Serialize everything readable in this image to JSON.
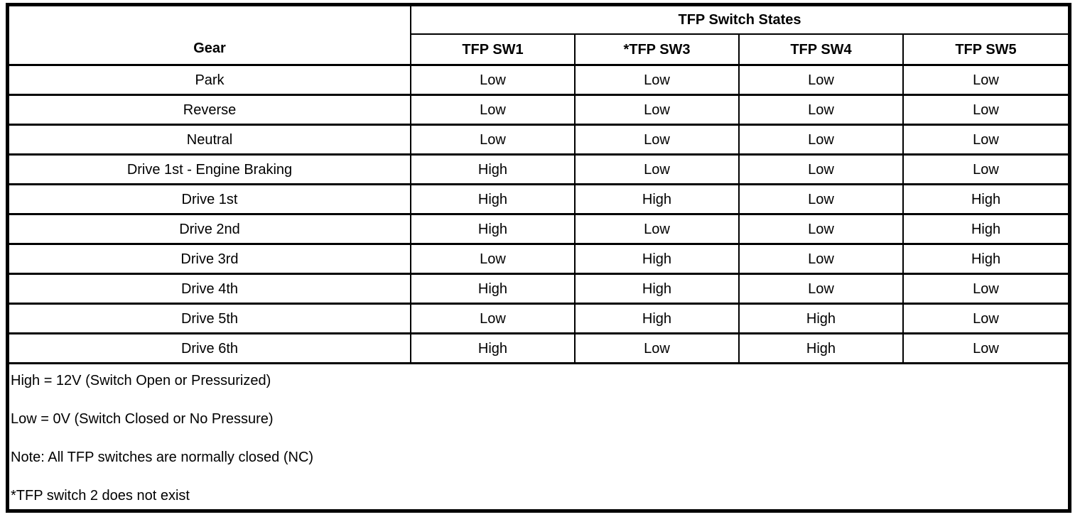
{
  "table": {
    "group_header": "TFP Switch States",
    "gear_header": "Gear",
    "columns": [
      "TFP SW1",
      "*TFP SW3",
      "TFP SW4",
      "TFP SW5"
    ],
    "rows": [
      {
        "gear": "Park",
        "values": [
          "Low",
          "Low",
          "Low",
          "Low"
        ]
      },
      {
        "gear": "Reverse",
        "values": [
          "Low",
          "Low",
          "Low",
          "Low"
        ]
      },
      {
        "gear": "Neutral",
        "values": [
          "Low",
          "Low",
          "Low",
          "Low"
        ]
      },
      {
        "gear": "Drive 1st - Engine Braking",
        "values": [
          "High",
          "Low",
          "Low",
          "Low"
        ]
      },
      {
        "gear": "Drive 1st",
        "values": [
          "High",
          "High",
          "Low",
          "High"
        ]
      },
      {
        "gear": "Drive 2nd",
        "values": [
          "High",
          "Low",
          "Low",
          "High"
        ]
      },
      {
        "gear": "Drive 3rd",
        "values": [
          "Low",
          "High",
          "Low",
          "High"
        ]
      },
      {
        "gear": "Drive 4th",
        "values": [
          "High",
          "High",
          "Low",
          "Low"
        ]
      },
      {
        "gear": "Drive 5th",
        "values": [
          "Low",
          "High",
          "High",
          "Low"
        ]
      },
      {
        "gear": "Drive 6th",
        "values": [
          "High",
          "Low",
          "High",
          "Low"
        ]
      }
    ],
    "notes": [
      "High = 12V (Switch Open or Pressurized)",
      "Low = 0V (Switch Closed or No Pressure)",
      "Note: All TFP switches are normally closed (NC)",
      "*TFP switch 2 does not exist"
    ]
  },
  "colors": {
    "border": "#000000",
    "text": "#000000",
    "background": "#ffffff"
  }
}
